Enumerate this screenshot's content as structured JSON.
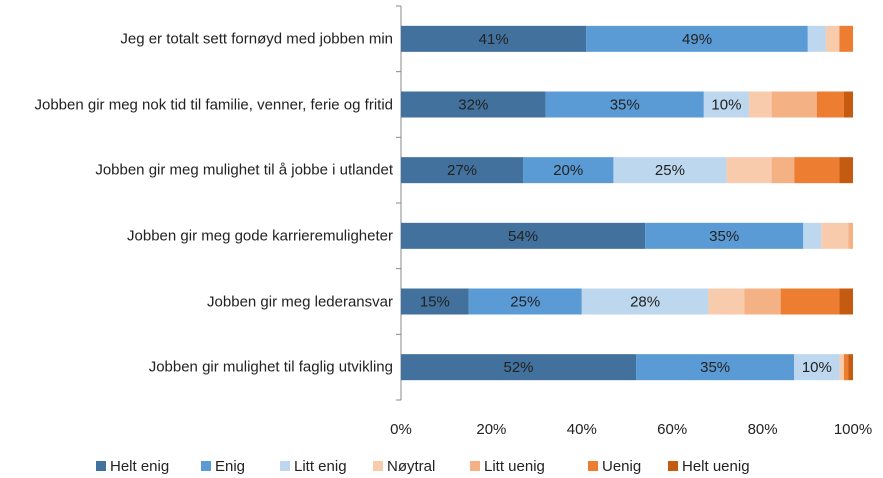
{
  "chart_data": {
    "type": "stacked-bar-horizontal",
    "categories": [
      "Jeg er totalt sett fornøyd med jobben min",
      "Jobben gir meg nok tid til familie, venner, ferie og fritid",
      "Jobben gir meg mulighet til å jobbe i utlandet",
      "Jobben gir meg gode karrieremuligheter",
      "Jobben gir meg lederansvar",
      "Jobben gir mulighet til faglig utvikling"
    ],
    "series": [
      {
        "name": "Helt enig",
        "color": "#41719c",
        "values": [
          41,
          32,
          27,
          54,
          15,
          52
        ],
        "value_labels": [
          "41%",
          "32%",
          "27%",
          "54%",
          "15%",
          "52%"
        ]
      },
      {
        "name": "Enig",
        "color": "#5b9bd5",
        "values": [
          49,
          35,
          20,
          35,
          25,
          35
        ],
        "value_labels": [
          "49%",
          "35%",
          "20%",
          "35%",
          "25%",
          "35%"
        ]
      },
      {
        "name": "Litt enig",
        "color": "#bdd7ee",
        "values": [
          4,
          10,
          25,
          4,
          28,
          10
        ],
        "value_labels": [
          null,
          "10%",
          "25%",
          null,
          "28%",
          "10%"
        ]
      },
      {
        "name": "Nøytral",
        "color": "#f8cbad",
        "values": [
          3,
          5,
          10,
          6,
          8,
          1
        ]
      },
      {
        "name": "Litt uenig",
        "color": "#f4b183",
        "values": [
          0,
          10,
          5,
          1,
          8,
          0
        ]
      },
      {
        "name": "Uenig",
        "color": "#ed7d31",
        "values": [
          3,
          6,
          10,
          0,
          13,
          1
        ]
      },
      {
        "name": "Helt uenig",
        "color": "#c55a11",
        "values": [
          0,
          2,
          3,
          0,
          3,
          1
        ]
      }
    ],
    "xlim": [
      0,
      100
    ],
    "xticks": [
      {
        "value": 0,
        "label": "0%"
      },
      {
        "value": 20,
        "label": "20%"
      },
      {
        "value": 40,
        "label": "40%"
      },
      {
        "value": 60,
        "label": "60%"
      },
      {
        "value": 80,
        "label": "80%"
      },
      {
        "value": 100,
        "label": "100%"
      }
    ],
    "legend": "bottom"
  }
}
